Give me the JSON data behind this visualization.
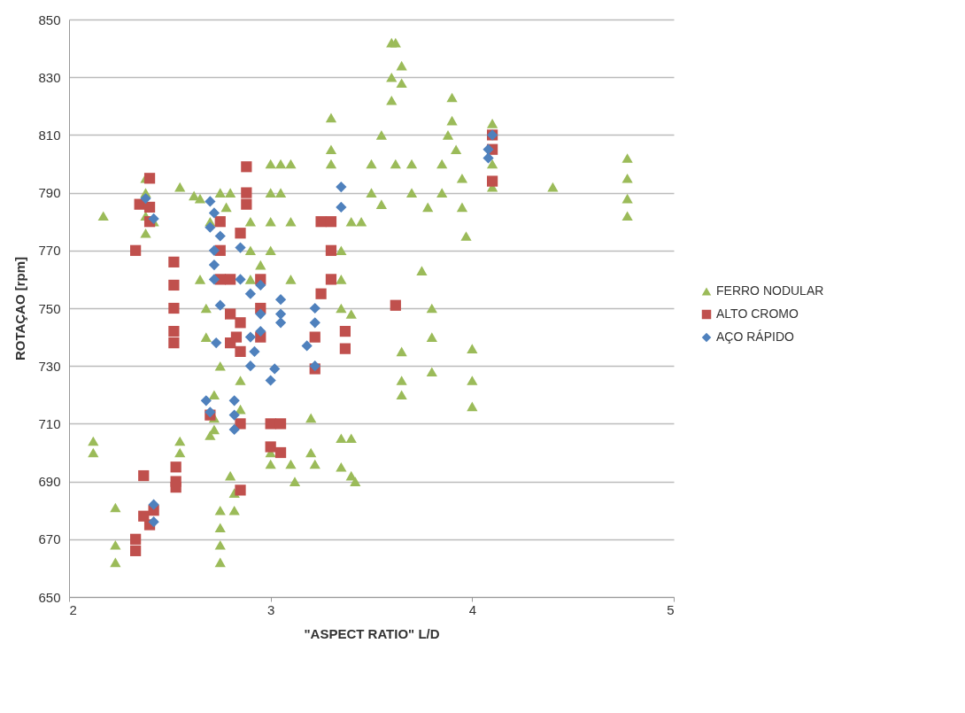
{
  "chart_data": {
    "type": "scatter",
    "xlabel": "\"ASPECT RATIO\" L/D",
    "ylabel": "ROTAÇAO [rpm]",
    "xlim": [
      2,
      5
    ],
    "xticks": [
      2,
      3,
      4,
      5
    ],
    "ylim": [
      650,
      850
    ],
    "yticks": [
      650,
      670,
      690,
      710,
      730,
      750,
      770,
      790,
      810,
      830,
      850
    ],
    "grid": "y",
    "legend": "right",
    "series": [
      {
        "name": "FERRO NODULAR",
        "color": "#9bbb59",
        "marker": "triangle",
        "x": [
          2.12,
          2.12,
          2.17,
          2.23,
          2.23,
          2.23,
          2.38,
          2.38,
          2.38,
          2.38,
          2.42,
          2.55,
          2.55,
          2.55,
          2.62,
          2.65,
          2.65,
          2.68,
          2.68,
          2.7,
          2.7,
          2.72,
          2.72,
          2.72,
          2.75,
          2.75,
          2.75,
          2.75,
          2.75,
          2.75,
          2.78,
          2.8,
          2.8,
          2.82,
          2.82,
          2.85,
          2.85,
          2.9,
          2.9,
          2.9,
          2.95,
          3.0,
          3.0,
          3.0,
          3.0,
          3.0,
          3.0,
          3.05,
          3.05,
          3.1,
          3.1,
          3.1,
          3.1,
          3.12,
          3.2,
          3.2,
          3.22,
          3.3,
          3.3,
          3.3,
          3.4,
          3.35,
          3.35,
          3.35,
          3.35,
          3.35,
          3.4,
          3.4,
          3.4,
          3.42,
          3.45,
          3.5,
          3.5,
          3.55,
          3.55,
          3.6,
          3.6,
          3.6,
          3.62,
          3.62,
          3.65,
          3.65,
          3.65,
          3.65,
          3.65,
          3.7,
          3.7,
          3.75,
          3.78,
          3.8,
          3.8,
          3.8,
          3.85,
          3.85,
          3.88,
          3.9,
          3.9,
          3.92,
          3.95,
          3.95,
          3.97,
          4.0,
          4.0,
          4.0,
          4.1,
          4.1,
          4.1,
          4.4,
          4.77,
          4.77,
          4.77,
          4.77
        ],
        "values": [
          704,
          700,
          782,
          681,
          668,
          662,
          795,
          790,
          782,
          776,
          780,
          792,
          704,
          700,
          789,
          788,
          760,
          750,
          740,
          780,
          706,
          720,
          712,
          708,
          790,
          680,
          674,
          668,
          662,
          730,
          785,
          790,
          692,
          686,
          680,
          725,
          715,
          780,
          770,
          760,
          765,
          800,
          790,
          780,
          770,
          700,
          696,
          800,
          790,
          800,
          780,
          760,
          696,
          690,
          712,
          700,
          696,
          816,
          805,
          800,
          780,
          770,
          760,
          750,
          705,
          695,
          748,
          705,
          692,
          690,
          780,
          790,
          800,
          810,
          786,
          822,
          830,
          842,
          842,
          800,
          834,
          828,
          735,
          725,
          720,
          790,
          800,
          763,
          785,
          750,
          740,
          728,
          790,
          800,
          810,
          823,
          815,
          805,
          795,
          785,
          775,
          736,
          725,
          716,
          814,
          800,
          792,
          792,
          802,
          795,
          788,
          782
        ]
      },
      {
        "name": "ALTO CROMO",
        "color": "#c0504d",
        "marker": "square",
        "x": [
          2.33,
          2.33,
          2.33,
          2.37,
          2.37,
          2.35,
          2.4,
          2.4,
          2.4,
          2.4,
          2.42,
          2.52,
          2.52,
          2.52,
          2.52,
          2.52,
          2.53,
          2.53,
          2.53,
          2.7,
          2.75,
          2.75,
          2.75,
          2.8,
          2.8,
          2.8,
          2.83,
          2.85,
          2.85,
          2.85,
          2.85,
          2.85,
          2.88,
          2.88,
          2.88,
          2.95,
          2.95,
          2.95,
          3.0,
          3.0,
          3.05,
          3.05,
          3.22,
          3.22,
          3.25,
          3.25,
          3.3,
          3.3,
          3.3,
          3.37,
          3.37,
          3.62,
          4.1,
          4.1,
          4.1
        ],
        "values": [
          770,
          670,
          666,
          692,
          678,
          786,
          795,
          785,
          780,
          675,
          680,
          766,
          758,
          750,
          742,
          738,
          695,
          690,
          688,
          713,
          780,
          770,
          760,
          760,
          748,
          738,
          740,
          776,
          745,
          735,
          710,
          687,
          799,
          790,
          786,
          760,
          750,
          740,
          710,
          702,
          710,
          700,
          729,
          740,
          780,
          755,
          780,
          770,
          760,
          742,
          736,
          751,
          810,
          805,
          794
        ]
      },
      {
        "name": "AÇO RÁPIDO",
        "color": "#4f81bd",
        "marker": "diamond",
        "x": [
          2.38,
          2.42,
          2.42,
          2.42,
          2.68,
          2.7,
          2.7,
          2.7,
          2.72,
          2.72,
          2.72,
          2.72,
          2.73,
          2.75,
          2.75,
          2.82,
          2.82,
          2.82,
          2.85,
          2.85,
          2.9,
          2.9,
          2.9,
          2.92,
          2.95,
          2.95,
          2.95,
          3.0,
          3.02,
          3.05,
          3.05,
          3.05,
          3.18,
          3.22,
          3.22,
          3.22,
          3.35,
          3.35,
          4.08,
          4.08,
          4.1
        ],
        "values": [
          788,
          781,
          682,
          676,
          718,
          714,
          787,
          778,
          770,
          760,
          783,
          765,
          738,
          751,
          775,
          708,
          713,
          718,
          771,
          760,
          755,
          740,
          730,
          735,
          758,
          748,
          742,
          725,
          729,
          753,
          748,
          745,
          737,
          730,
          745,
          750,
          792,
          785,
          805,
          802,
          810
        ]
      }
    ]
  }
}
